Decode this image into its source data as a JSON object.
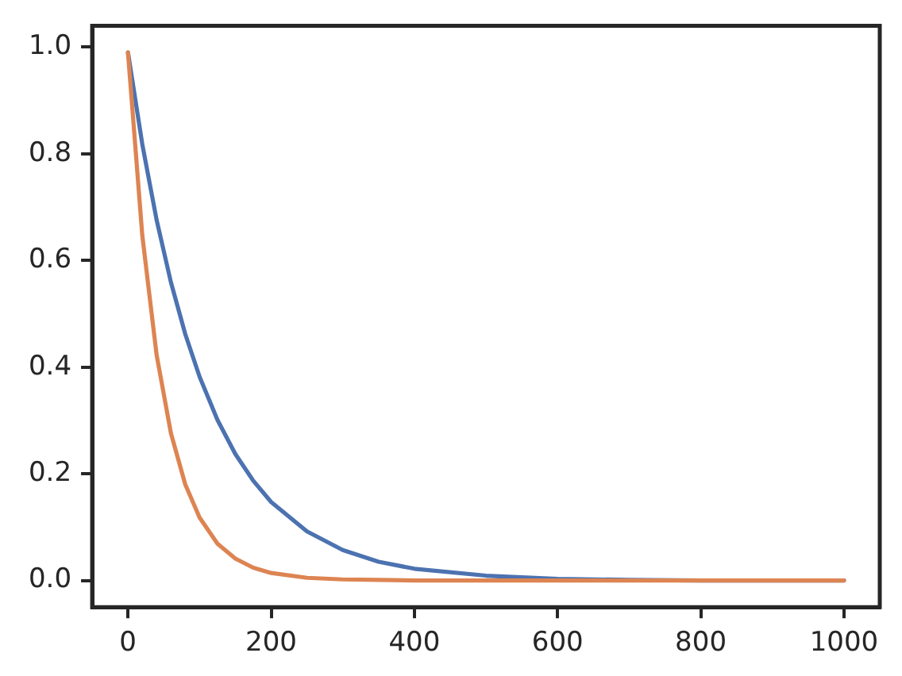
{
  "chart_data": {
    "type": "line",
    "x": [
      0,
      20,
      40,
      60,
      80,
      100,
      125,
      150,
      175,
      200,
      250,
      300,
      350,
      400,
      500,
      600,
      700,
      800,
      900,
      1000
    ],
    "series": [
      {
        "color": "#4c72b0",
        "values": [
          0.99,
          0.818,
          0.676,
          0.559,
          0.462,
          0.382,
          0.301,
          0.237,
          0.187,
          0.147,
          0.092,
          0.057,
          0.035,
          0.022,
          0.009,
          0.003,
          0.001,
          0,
          0,
          0
        ]
      },
      {
        "color": "#dd8452",
        "values": [
          0.99,
          0.647,
          0.423,
          0.276,
          0.18,
          0.118,
          0.069,
          0.041,
          0.024,
          0.014,
          0.005,
          0.002,
          0.001,
          0,
          0,
          0,
          0,
          0,
          0,
          0
        ]
      }
    ],
    "xlim": [
      -50,
      1050
    ],
    "ylim": [
      -0.05,
      1.04
    ],
    "xticks": [
      0,
      200,
      400,
      600,
      800,
      1000
    ],
    "yticks": [
      {
        "value": 0,
        "label": "0.0"
      },
      {
        "value": 0.2,
        "label": "0.2"
      },
      {
        "value": 0.4,
        "label": "0.4"
      },
      {
        "value": 0.6,
        "label": "0.6"
      },
      {
        "value": 0.8,
        "label": "0.8"
      },
      {
        "value": 1,
        "label": "1.0"
      }
    ],
    "grid": false,
    "legend": false,
    "marker": "none",
    "line_style": "solid"
  }
}
